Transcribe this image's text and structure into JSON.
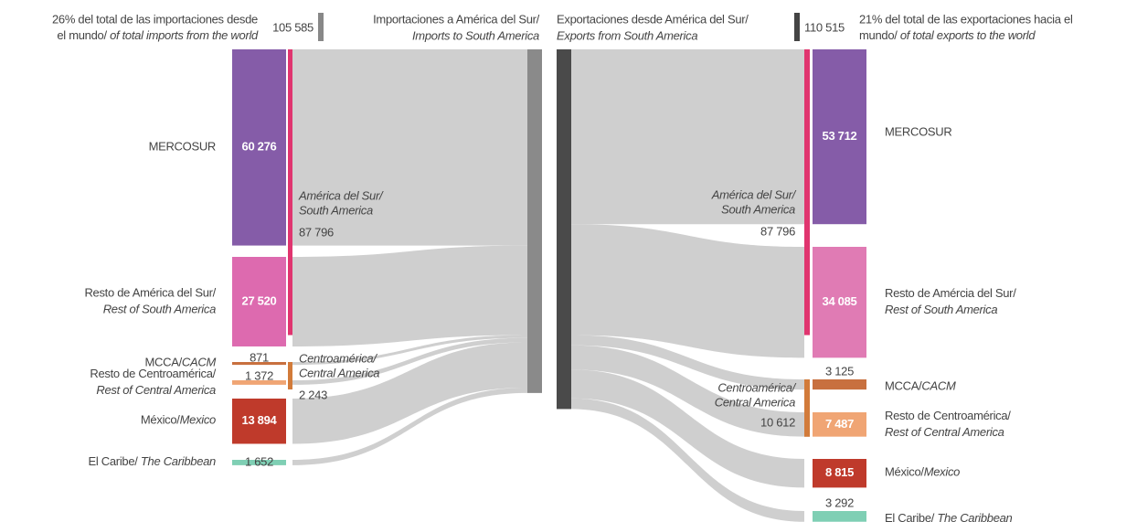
{
  "imports": {
    "share": "26% del total de las importaciones desde",
    "share2": "el mundo/ ",
    "share_en": "of total imports from the world",
    "total": 105585,
    "total_label": "105 585",
    "title": "Importaciones a América del Sur/",
    "title_en": "Imports to South America",
    "groups": [
      {
        "name": "América del Sur/",
        "name_en": "South America",
        "value": 87796,
        "label": "87 796",
        "color": "#e0356f"
      },
      {
        "name": "Centroamérica/",
        "name_en": "Central America",
        "value": 2243,
        "label": "2 243",
        "color": "#d27b3a"
      }
    ],
    "nodes": [
      {
        "name": "MERCOSUR",
        "value": 60276,
        "label": "60 276",
        "color": "#855ca8"
      },
      {
        "name": "Resto de América del Sur/",
        "name_en": "Rest of South America",
        "same_line": false,
        "value": 27520,
        "label": "27 520",
        "color": "#dd6aaf"
      },
      {
        "name": "MCCA/",
        "name_en": "CACM",
        "same_line": true,
        "value": 871,
        "label": "871",
        "color": "#c8703f"
      },
      {
        "name": "Resto de Centroamérica/",
        "name_en": "Rest of Central America",
        "same_line": false,
        "value": 1372,
        "label": "1 372",
        "color": "#f0a574"
      },
      {
        "name": "México/",
        "name_en": "Mexico",
        "same_line": true,
        "value": 13894,
        "label": "13 894",
        "color": "#bf3a2b"
      },
      {
        "name": "El Caribe/ ",
        "name_en": "The Caribbean",
        "same_line": true,
        "value": 1652,
        "label": "1 652",
        "color": "#7fcfb4"
      }
    ]
  },
  "exports": {
    "title": "Exportaciones desde América del Sur/",
    "title_en": "Exports from South America",
    "total": 110515,
    "total_label": "110 515",
    "share": "21% del total de las exportaciones hacia el",
    "share2": "mundo/ ",
    "share_en": "of total exports to the world",
    "groups": [
      {
        "name": "América del Sur/",
        "name_en": "South America",
        "value": 87796,
        "label": "87 796",
        "color": "#e0356f"
      },
      {
        "name": "Centroamérica/",
        "name_en": "Central America",
        "value": 10612,
        "label": "10 612",
        "color": "#d27b3a"
      }
    ],
    "nodes": [
      {
        "name": "MERCOSUR",
        "value": 53712,
        "label": "53 712",
        "color": "#855ca8"
      },
      {
        "name": "Resto de Amércia del Sur/",
        "name_en": "Rest of South America",
        "same_line": false,
        "value": 34085,
        "label": "34 085",
        "color": "#e07bb4"
      },
      {
        "name": "MCCA/",
        "name_en": "CACM",
        "same_line": true,
        "value": 3125,
        "label": "3 125",
        "color": "#c8703f"
      },
      {
        "name": "Resto de Centroamérica/",
        "name_en": "Rest of Central America",
        "same_line": false,
        "value": 7487,
        "label": "7 487",
        "color": "#f0a574"
      },
      {
        "name": "México/",
        "name_en": "Mexico",
        "same_line": true,
        "value": 8815,
        "label": "8 815",
        "color": "#bf3a2b"
      },
      {
        "name": "El Caribe/ ",
        "name_en": "The Caribbean",
        "same_line": true,
        "value": 3292,
        "label": "3 292",
        "color": "#7fcfb4"
      }
    ]
  }
}
